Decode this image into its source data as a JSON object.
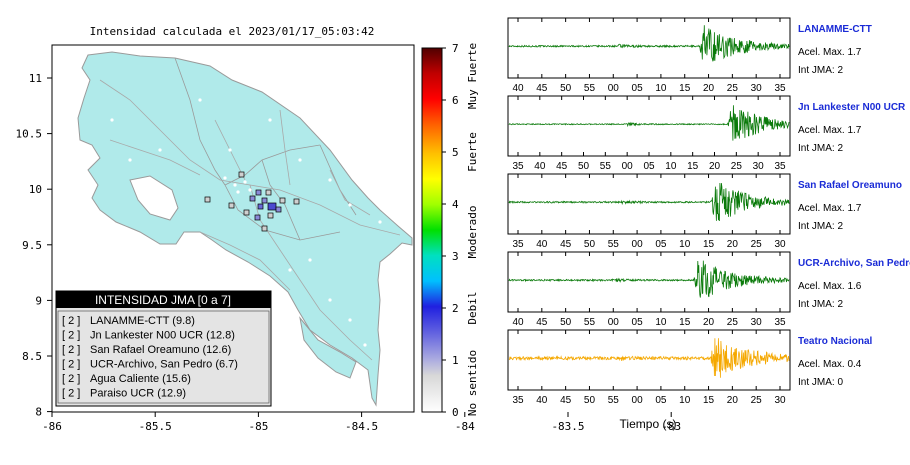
{
  "map": {
    "title": "Intensidad calculada el 2023/01/17_05:03:42",
    "x_ticks": [
      "-86",
      "-85.5",
      "-85",
      "-84.5",
      "-84",
      "-83.5",
      "-83"
    ],
    "y_ticks": [
      "11",
      "10.5",
      "10",
      "9.5",
      "9",
      "8.5",
      "8"
    ],
    "colorbar": {
      "ticks": [
        "0",
        "1",
        "2",
        "3",
        "4",
        "5",
        "6",
        "7"
      ],
      "labels": [
        "No sentido",
        "Debil",
        "Moderado",
        "Fuerte",
        "Muy Fuerte"
      ]
    },
    "legend": {
      "title": "INTENSIDAD JMA [0 a 7]",
      "items": [
        {
          "level": "[ 2 ]",
          "text": "LANAMME-CTT (9.8)"
        },
        {
          "level": "[ 2 ]",
          "text": "Jn Lankester N00 UCR (12.8)"
        },
        {
          "level": "[ 2 ]",
          "text": "San Rafael Oreamuno (12.6)"
        },
        {
          "level": "[ 2 ]",
          "text": "UCR-Archivo, San Pedro (6.7)"
        },
        {
          "level": "[ 2 ]",
          "text": "Agua Caliente (15.6)"
        },
        {
          "level": "[ 2 ]",
          "text": "Paraiso UCR (12.9)"
        }
      ]
    },
    "colors": {
      "land": "#b0eaea",
      "border": "#9a9a9a",
      "road": "#a8a8a8",
      "station_fill": "#6a6ad8"
    }
  },
  "chart_data": [
    {
      "type": "line",
      "title": "LANAMME-CTT",
      "tick_labels": [
        "40",
        "45",
        "50",
        "55",
        "00",
        "05",
        "10",
        "15",
        "20",
        "25",
        "30",
        "35"
      ],
      "info": {
        "acel": "Acel. Max. 1.7",
        "jma": "Int JMA: 2"
      },
      "color": "#0a7a0a",
      "signal": {
        "noise": 0.03,
        "p_arrival_frac": 0.39,
        "s_arrival_frac": 0.68,
        "peak": 1.0
      }
    },
    {
      "type": "line",
      "title": "Jn Lankester N00 UCR",
      "tick_labels": [
        "35",
        "40",
        "45",
        "50",
        "55",
        "00",
        "05",
        "10",
        "15",
        "20",
        "25",
        "30",
        "35"
      ],
      "info": {
        "acel": "Acel. Max. 1.7",
        "jma": "Int JMA: 2"
      },
      "color": "#0a7a0a",
      "signal": {
        "noise": 0.02,
        "p_arrival_frac": 0.42,
        "s_arrival_frac": 0.78,
        "peak": 0.9
      }
    },
    {
      "type": "line",
      "title": "San Rafael Oreamuno",
      "tick_labels": [
        "35",
        "40",
        "45",
        "50",
        "55",
        "00",
        "05",
        "10",
        "15",
        "20",
        "25",
        "30"
      ],
      "info": {
        "acel": "Acel. Max. 1.7",
        "jma": "Int JMA: 2"
      },
      "color": "#0a7a0a",
      "signal": {
        "noise": 0.03,
        "p_arrival_frac": 0.4,
        "s_arrival_frac": 0.72,
        "peak": 1.0
      }
    },
    {
      "type": "line",
      "title": "UCR-Archivo, San Pedro",
      "tick_labels": [
        "40",
        "45",
        "50",
        "55",
        "00",
        "05",
        "10",
        "15",
        "20",
        "25",
        "30",
        "35"
      ],
      "info": {
        "acel": "Acel. Max. 1.6",
        "jma": "Int JMA: 2"
      },
      "color": "#0a7a0a",
      "signal": {
        "noise": 0.03,
        "p_arrival_frac": 0.37,
        "s_arrival_frac": 0.66,
        "peak": 1.0
      }
    },
    {
      "type": "line",
      "title": "Teatro Nacional",
      "tick_labels": [
        "35",
        "40",
        "45",
        "50",
        "55",
        "00",
        "05",
        "10",
        "15",
        "20",
        "25",
        "30"
      ],
      "info": {
        "acel": "Acel. Max. 0.4",
        "jma": "Int JMA: 0"
      },
      "color": "#f5a800",
      "signal": {
        "noise": 0.06,
        "p_arrival_frac": 0.4,
        "s_arrival_frac": 0.72,
        "peak": 1.0
      }
    }
  ],
  "xlabel": "Tiempo (s)"
}
